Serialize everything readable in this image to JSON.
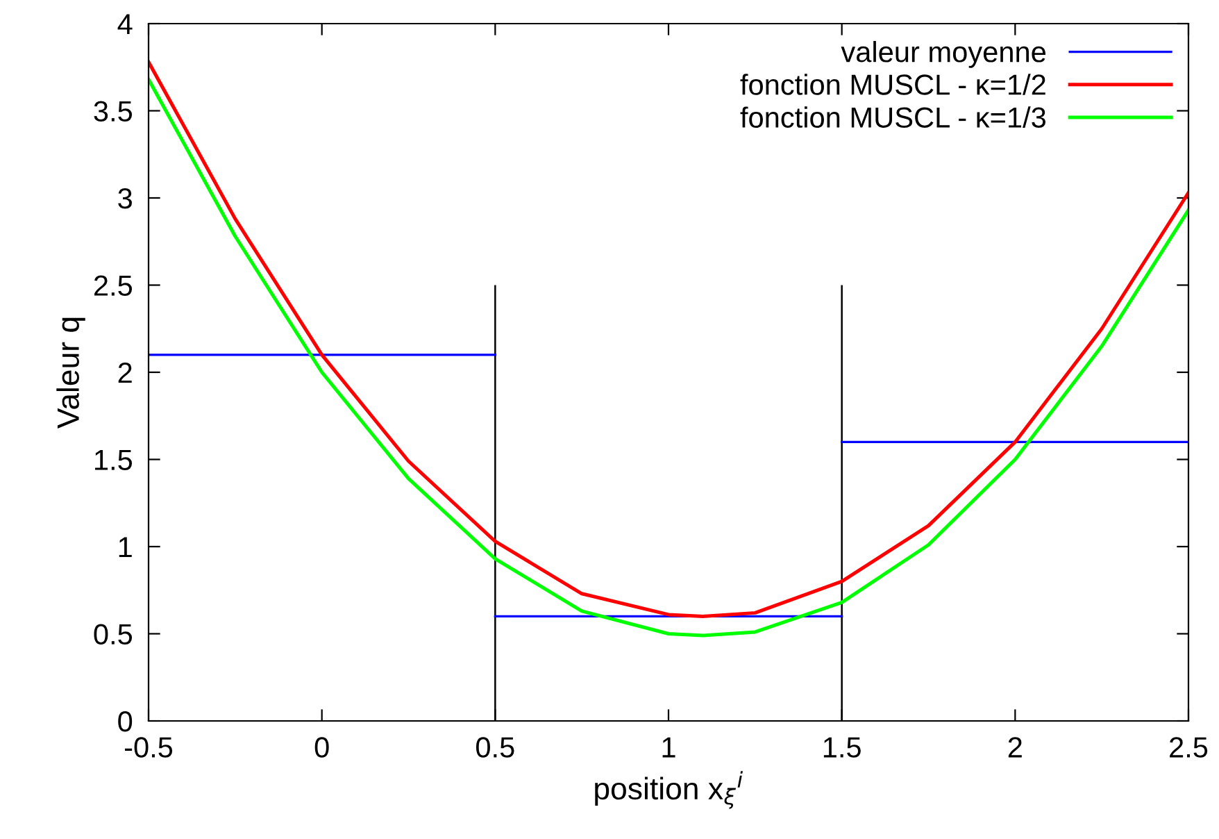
{
  "chart_data": {
    "type": "line",
    "xlabel": "position x$_{ξ}$$^{i}$",
    "ylabel": "Valeur q",
    "xlim": [
      -0.5,
      2.5
    ],
    "xticks": [
      -0.5,
      0,
      0.5,
      1,
      1.5,
      2,
      2.5
    ],
    "ylim": [
      0,
      4
    ],
    "yticks": [
      0,
      0.5,
      1,
      1.5,
      2,
      2.5,
      3,
      3.5,
      4
    ],
    "grid": false,
    "legend": "top right",
    "series": [
      {
        "name": "valeur moyenne",
        "color": "#0000ff",
        "x": [
          -0.5,
          0.5
        ],
        "values": [
          2.1,
          2.1
        ]
      },
      {
        "color": "#0000ff",
        "x": [
          0.5,
          1.5
        ],
        "values": [
          0.6,
          0.6
        ]
      },
      {
        "color": "#0000ff",
        "x": [
          1.5,
          2.5
        ],
        "values": [
          1.6,
          1.6
        ]
      },
      {
        "name": "fonction MUSCL - κ=1/2",
        "color": "#ff0000",
        "x": [
          -0.5,
          -0.25,
          0,
          0.25,
          0.5,
          0.75,
          1,
          1.1,
          1.25,
          1.5,
          1.75,
          2,
          2.25,
          2.5
        ],
        "values": [
          3.78,
          2.88,
          2.1,
          1.49,
          1.03,
          0.73,
          0.61,
          0.6,
          0.62,
          0.8,
          1.12,
          1.6,
          2.25,
          3.03
        ]
      },
      {
        "name": "fonction MUSCL - κ=1/3",
        "color": "#00ff00",
        "x": [
          -0.5,
          -0.25,
          0,
          0.25,
          0.5,
          0.75,
          1,
          1.1,
          1.25,
          1.5,
          1.75,
          2,
          2.25,
          2.5
        ],
        "values": [
          3.68,
          2.78,
          2.0,
          1.39,
          0.93,
          0.63,
          0.5,
          0.49,
          0.51,
          0.68,
          1.01,
          1.5,
          2.15,
          2.93
        ]
      },
      {
        "type": "bar",
        "color": "#000000",
        "x": [
          0.5,
          1.5
        ],
        "values": [
          2.5,
          2.5
        ]
      }
    ]
  }
}
